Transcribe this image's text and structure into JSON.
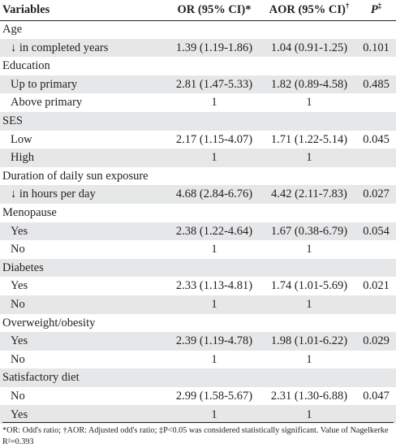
{
  "headers": {
    "variables": "Variables",
    "or": "OR (95% CI)*",
    "aor": "AOR (95% CI)",
    "aor_mark": "†",
    "p": "P",
    "p_mark": "‡"
  },
  "rows": [
    {
      "type": "group",
      "label": "Age",
      "or": "",
      "aor": "",
      "p": ""
    },
    {
      "type": "sub",
      "label": "↓ in completed years",
      "or": "1.39 (1.19-1.86)",
      "aor": "1.04 (0.91-1.25)",
      "p": "0.101"
    },
    {
      "type": "group",
      "label": "Education",
      "or": "",
      "aor": "",
      "p": ""
    },
    {
      "type": "sub",
      "label": "Up to primary",
      "or": "2.81 (1.47-5.33)",
      "aor": "1.82 (0.89-4.58)",
      "p": "0.485"
    },
    {
      "type": "sub",
      "label": "Above primary",
      "or": "1",
      "aor": "1",
      "p": ""
    },
    {
      "type": "group",
      "label": "SES",
      "or": "",
      "aor": "",
      "p": ""
    },
    {
      "type": "sub",
      "label": "Low",
      "or": "2.17 (1.15-4.07)",
      "aor": "1.71 (1.22-5.14)",
      "p": "0.045"
    },
    {
      "type": "sub",
      "label": "High",
      "or": "1",
      "aor": "1",
      "p": ""
    },
    {
      "type": "group",
      "label": "Duration of daily sun exposure",
      "or": "",
      "aor": "",
      "p": ""
    },
    {
      "type": "sub",
      "label": "↓ in hours per day",
      "or": "4.68 (2.84-6.76)",
      "aor": "4.42 (2.11-7.83)",
      "p": "0.027"
    },
    {
      "type": "group",
      "label": "Menopause",
      "or": "",
      "aor": "",
      "p": ""
    },
    {
      "type": "sub",
      "label": "Yes",
      "or": "2.38 (1.22-4.64)",
      "aor": "1.67 (0.38-6.79)",
      "p": "0.054"
    },
    {
      "type": "sub",
      "label": "No",
      "or": "1",
      "aor": "1",
      "p": ""
    },
    {
      "type": "group",
      "label": "Diabetes",
      "or": "",
      "aor": "",
      "p": ""
    },
    {
      "type": "sub",
      "label": "Yes",
      "or": "2.33 (1.13-4.81)",
      "aor": "1.74 (1.01-5.69)",
      "p": "0.021"
    },
    {
      "type": "sub",
      "label": "No",
      "or": "1",
      "aor": "1",
      "p": ""
    },
    {
      "type": "group",
      "label": "Overweight/obesity",
      "or": "",
      "aor": "",
      "p": ""
    },
    {
      "type": "sub",
      "label": "Yes",
      "or": "2.39 (1.19-4.78)",
      "aor": "1.98 (1.01-6.22)",
      "p": "0.029"
    },
    {
      "type": "sub",
      "label": "No",
      "or": "1",
      "aor": "1",
      "p": ""
    },
    {
      "type": "group",
      "label": "Satisfactory diet",
      "or": "",
      "aor": "",
      "p": ""
    },
    {
      "type": "sub",
      "label": "No",
      "or": "2.99 (1.58-5.67)",
      "aor": "2.31 (1.30-6.88)",
      "p": "0.047"
    },
    {
      "type": "sub",
      "label": "Yes",
      "or": "1",
      "aor": "1",
      "p": ""
    }
  ],
  "footnote": "*OR: Odd's ratio; †AOR: Adjusted odd's ratio; ‡P<0.05 was considered statistically significant. Value of Nagelkerke R²=0.393"
}
